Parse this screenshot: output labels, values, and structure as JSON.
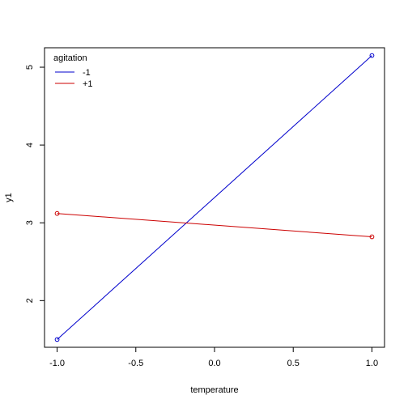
{
  "chart_data": {
    "type": "line",
    "xlabel": "temperature",
    "ylabel": "y1",
    "xlim": [
      -1.08,
      1.08
    ],
    "ylim": [
      1.4,
      5.25
    ],
    "xticks": [
      -1.0,
      -0.5,
      0.0,
      0.5,
      1.0
    ],
    "xtick_labels": [
      "-1.0",
      "-0.5",
      "0.0",
      "0.5",
      "1.0"
    ],
    "yticks": [
      2,
      3,
      4,
      5
    ],
    "ytick_labels": [
      "2",
      "3",
      "4",
      "5"
    ],
    "grid": false,
    "legend": {
      "title": "agitation",
      "placement": "top-left",
      "entries": [
        "-1",
        "+1"
      ]
    },
    "series": [
      {
        "name": "-1",
        "color": "#0000cc",
        "x": [
          -1,
          1
        ],
        "y": [
          1.5,
          5.15
        ]
      },
      {
        "name": "+1",
        "color": "#cc0000",
        "x": [
          -1,
          1
        ],
        "y": [
          3.12,
          2.82
        ]
      }
    ]
  }
}
